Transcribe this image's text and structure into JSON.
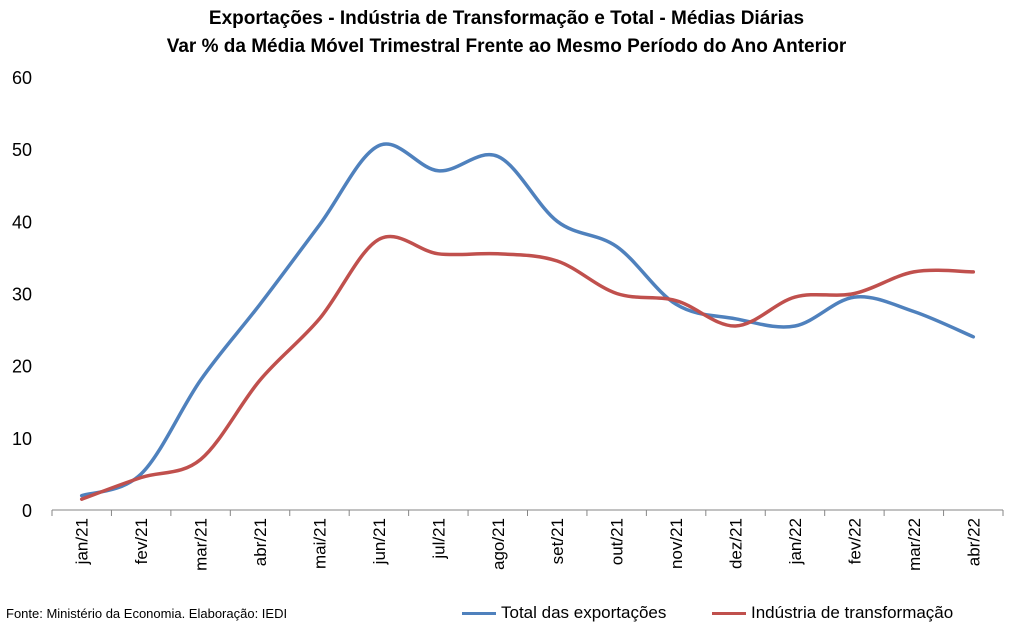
{
  "chart_data": {
    "type": "line",
    "title": "Exportações - Indústria de Transformação e Total - Médias Diárias",
    "subtitle": "Var % da Média Móvel Trimestral Frente ao Mesmo Período do Ano Anterior",
    "xlabel": "",
    "ylabel": "",
    "ylim": [
      0,
      60
    ],
    "yticks": [
      0,
      10,
      20,
      30,
      40,
      50,
      60
    ],
    "categories": [
      "jan/21",
      "fev/21",
      "mar/21",
      "abr/21",
      "mai/21",
      "jun/21",
      "jul/21",
      "ago/21",
      "set/21",
      "out/21",
      "nov/21",
      "dez/21",
      "jan/22",
      "fev/22",
      "mar/22",
      "abr/22"
    ],
    "series": [
      {
        "name": "Total das exportações",
        "color": "#4F81BD",
        "values": [
          2.0,
          5.0,
          18.0,
          28.5,
          39.5,
          50.5,
          47.0,
          49.0,
          40.0,
          36.5,
          28.5,
          26.5,
          25.5,
          29.5,
          27.5,
          24.0
        ]
      },
      {
        "name": "Indústria de transformação",
        "color": "#C0504D",
        "values": [
          1.5,
          4.5,
          7.0,
          18.0,
          26.5,
          37.5,
          35.5,
          35.5,
          34.5,
          30.0,
          29.0,
          25.5,
          29.5,
          30.0,
          33.0,
          33.0
        ]
      }
    ],
    "grid": false,
    "legend_position": "bottom-right"
  },
  "source": "Fonte: Ministério da Economia. Elaboração: IEDI"
}
